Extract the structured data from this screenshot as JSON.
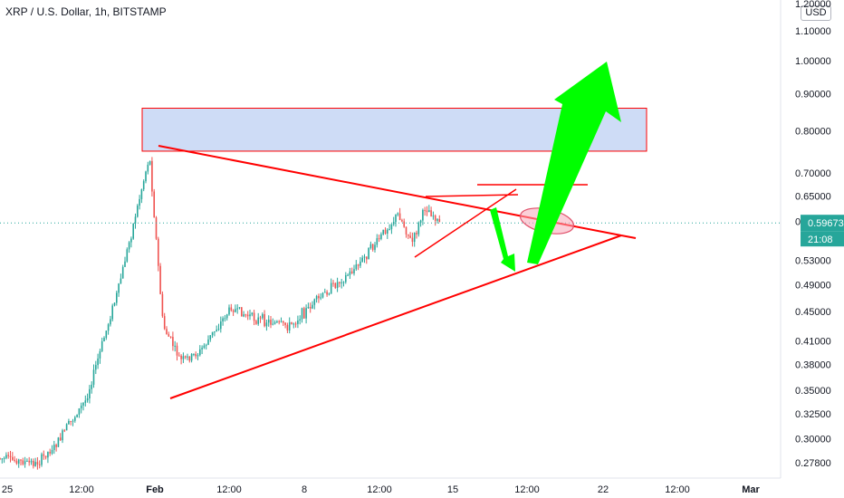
{
  "chart_data": {
    "type": "candlestick",
    "title": "XRP / U.S. Dollar, 1h, BITSTAMP",
    "currency": "USD",
    "y_axis_scale": "log",
    "y_ticks": [
      "1.20000",
      "1.10000",
      "1.00000",
      "0.90000",
      "0.80000",
      "0.70000",
      "0.65000",
      "0.60000",
      "0.53000",
      "0.49000",
      "0.45000",
      "0.41000",
      "0.38000",
      "0.35000",
      "0.32500",
      "0.30000",
      "0.27800"
    ],
    "x_ticks": [
      "25",
      "12:00",
      "Feb",
      "12:00",
      "8",
      "12:00",
      "15",
      "12:00",
      "22",
      "12:00",
      "Mar"
    ],
    "current_price": {
      "label": "0.59673",
      "value": 0.59673,
      "countdown": "21:08",
      "color": "#26a69a"
    },
    "series": [
      {
        "x": "Jan 25",
        "y": 0.282
      },
      {
        "x": "Jan 28",
        "y": 0.277
      },
      {
        "x": "Jan 29",
        "y": 0.293
      },
      {
        "x": "Jan 30",
        "y": 0.34
      },
      {
        "x": "Jan 31",
        "y": 0.48
      },
      {
        "x": "Feb 1",
        "y": 0.74
      },
      {
        "x": "Feb 1 12:00",
        "y": 0.43
      },
      {
        "x": "Feb 2",
        "y": 0.385
      },
      {
        "x": "Feb 3",
        "y": 0.395
      },
      {
        "x": "Feb 4",
        "y": 0.455
      },
      {
        "x": "Feb 5",
        "y": 0.44
      },
      {
        "x": "Feb 6",
        "y": 0.435
      },
      {
        "x": "Feb 7",
        "y": 0.43
      },
      {
        "x": "Feb 8",
        "y": 0.46
      },
      {
        "x": "Feb 9",
        "y": 0.49
      },
      {
        "x": "Feb 10",
        "y": 0.52
      },
      {
        "x": "Feb 11",
        "y": 0.56
      },
      {
        "x": "Feb 12",
        "y": 0.615
      },
      {
        "x": "Feb 12 12:00",
        "y": 0.56
      },
      {
        "x": "Feb 13",
        "y": 0.63
      },
      {
        "x": "Feb 13 12:00",
        "y": 0.597
      }
    ],
    "colors": {
      "up": "#26a69a",
      "down": "#ef5350",
      "annotation_line": "#ff0000",
      "arrow": "#00ff00",
      "zone_fill": "#c5d6f5",
      "zone_border": "#ff0000"
    },
    "annotations": {
      "resistance_zone": {
        "y_top": 0.86,
        "y_bottom": 0.75
      },
      "triangle": true,
      "arrows": [
        "down",
        "up"
      ],
      "ellipse_near_price": true
    }
  }
}
